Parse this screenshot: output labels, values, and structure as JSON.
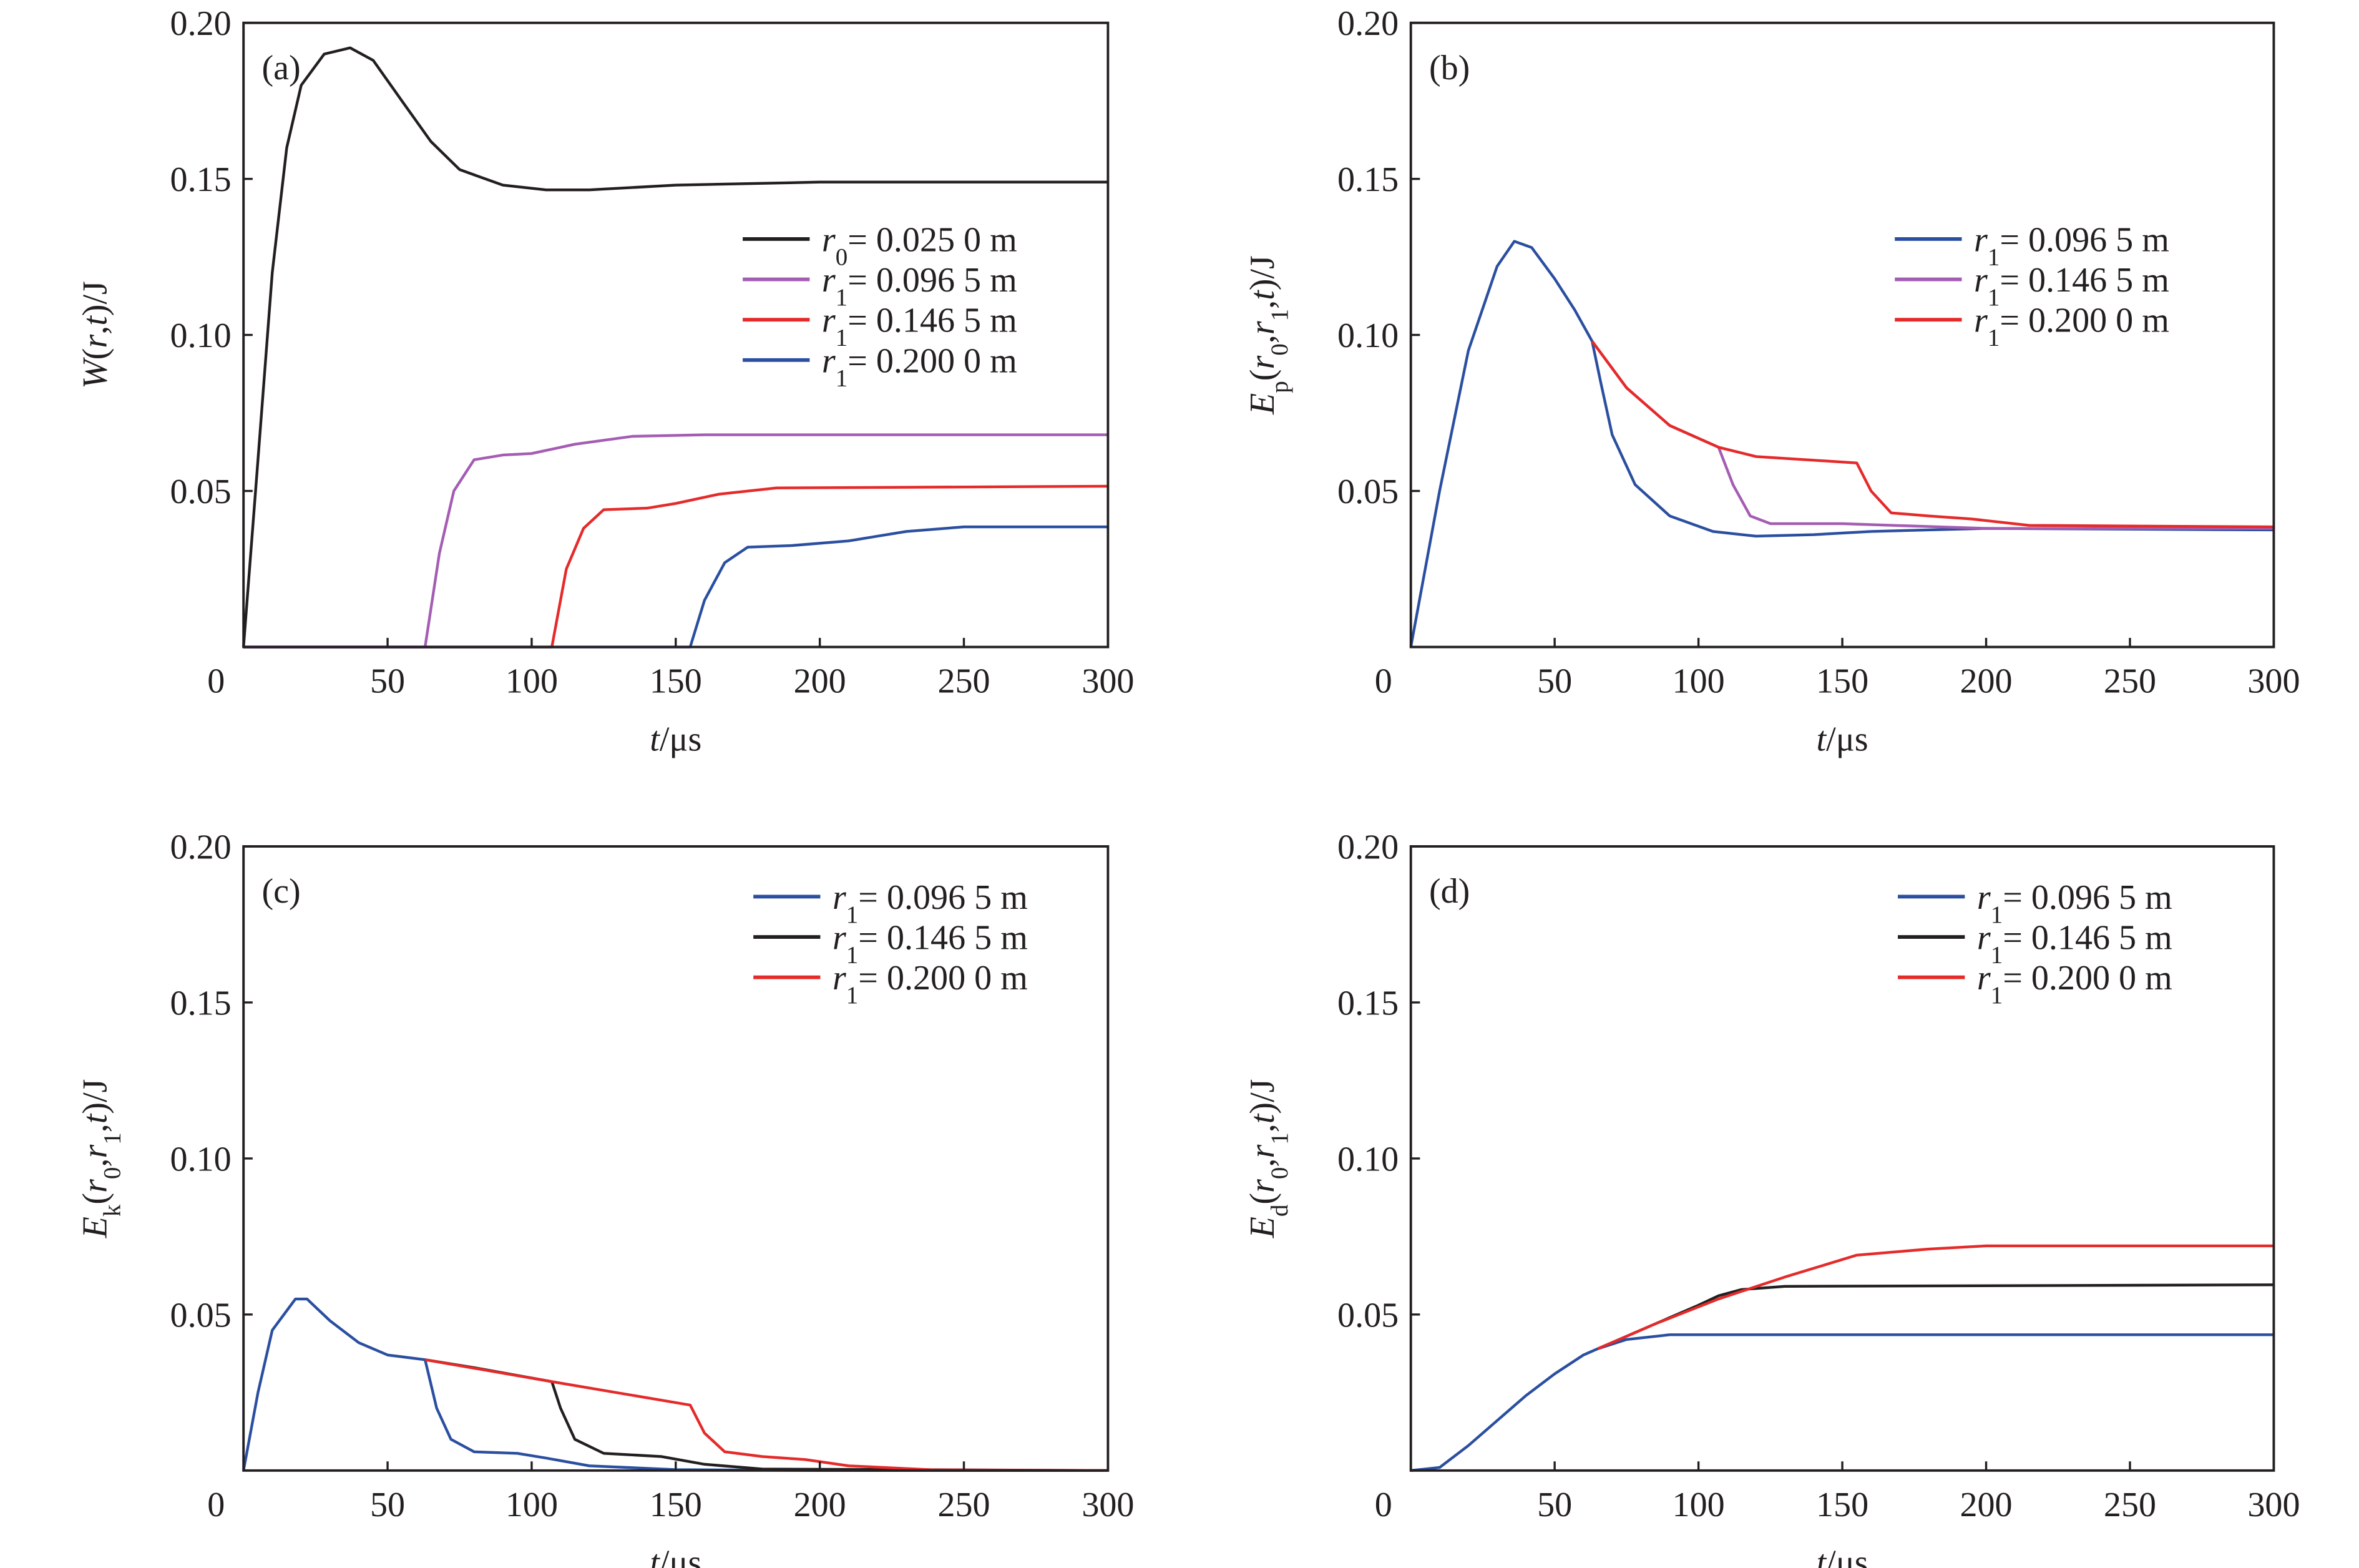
{
  "chart_data": [
    {
      "type": "line",
      "panel_label": "(a)",
      "xlabel": [
        {
          "t": "t",
          "i": true
        },
        {
          "t": "/μs"
        }
      ],
      "ylabel": [
        {
          "t": "W",
          "i": true
        },
        {
          "t": "("
        },
        {
          "t": "r",
          "i": true
        },
        {
          "t": ","
        },
        {
          "t": "t",
          "i": true
        },
        {
          "t": ")/J"
        }
      ],
      "xlim": [
        0,
        300
      ],
      "ylim": [
        0,
        0.2
      ],
      "xticks": [
        "0",
        "50",
        "100",
        "150",
        "200",
        "250",
        "300"
      ],
      "yticks": [
        "0.05",
        "0.10",
        "0.15",
        "0.20"
      ],
      "legend_placement": "center-right",
      "series": [
        {
          "name": [
            {
              "t": "r",
              "i": true
            },
            {
              "t": "0",
              "s": true
            },
            {
              "t": "= 0.025 0 m"
            }
          ],
          "color": "#231f20",
          "points": [
            [
              0,
              0
            ],
            [
              5,
              0.06
            ],
            [
              10,
              0.12
            ],
            [
              15,
              0.16
            ],
            [
              20,
              0.18
            ],
            [
              28,
              0.19
            ],
            [
              37,
              0.192
            ],
            [
              45,
              0.188
            ],
            [
              55,
              0.175
            ],
            [
              65,
              0.162
            ],
            [
              75,
              0.153
            ],
            [
              90,
              0.148
            ],
            [
              105,
              0.1465
            ],
            [
              120,
              0.1465
            ],
            [
              150,
              0.148
            ],
            [
              200,
              0.149
            ],
            [
              300,
              0.149
            ]
          ]
        },
        {
          "name": [
            {
              "t": "r",
              "i": true
            },
            {
              "t": "1",
              "s": true
            },
            {
              "t": "= 0.096 5 m"
            }
          ],
          "color": "#a45db3",
          "points": [
            [
              0,
              0
            ],
            [
              63,
              0
            ],
            [
              68,
              0.03
            ],
            [
              73,
              0.05
            ],
            [
              80,
              0.06
            ],
            [
              90,
              0.0615
            ],
            [
              100,
              0.062
            ],
            [
              115,
              0.065
            ],
            [
              135,
              0.0675
            ],
            [
              160,
              0.068
            ],
            [
              300,
              0.068
            ]
          ]
        },
        {
          "name": [
            {
              "t": "r",
              "i": true
            },
            {
              "t": "1",
              "s": true
            },
            {
              "t": "= 0.146 5 m"
            }
          ],
          "color": "#e52a2a",
          "points": [
            [
              0,
              0
            ],
            [
              107,
              0
            ],
            [
              112,
              0.025
            ],
            [
              118,
              0.038
            ],
            [
              125,
              0.044
            ],
            [
              140,
              0.0445
            ],
            [
              150,
              0.046
            ],
            [
              165,
              0.049
            ],
            [
              185,
              0.051
            ],
            [
              300,
              0.0515
            ]
          ]
        },
        {
          "name": [
            {
              "t": "r",
              "i": true
            },
            {
              "t": "1",
              "s": true
            },
            {
              "t": "= 0.200 0 m"
            }
          ],
          "color": "#2b4fa0",
          "points": [
            [
              0,
              0
            ],
            [
              155,
              0
            ],
            [
              160,
              0.015
            ],
            [
              167,
              0.027
            ],
            [
              175,
              0.032
            ],
            [
              190,
              0.0325
            ],
            [
              210,
              0.034
            ],
            [
              230,
              0.037
            ],
            [
              250,
              0.0385
            ],
            [
              300,
              0.0385
            ]
          ]
        }
      ]
    },
    {
      "type": "line",
      "panel_label": "(b)",
      "xlabel": [
        {
          "t": "t",
          "i": true
        },
        {
          "t": "/μs"
        }
      ],
      "ylabel": [
        {
          "t": "E",
          "i": true
        },
        {
          "t": "p",
          "s": true
        },
        {
          "t": "("
        },
        {
          "t": "r",
          "i": true
        },
        {
          "t": "0",
          "s": true
        },
        {
          "t": ","
        },
        {
          "t": "r",
          "i": true
        },
        {
          "t": "1",
          "s": true
        },
        {
          "t": ","
        },
        {
          "t": "t",
          "i": true
        },
        {
          "t": ")/J"
        }
      ],
      "xlim": [
        0,
        300
      ],
      "ylim": [
        0,
        0.2
      ],
      "xticks": [
        "0",
        "50",
        "100",
        "150",
        "200",
        "250",
        "300"
      ],
      "yticks": [
        "0.05",
        "0.10",
        "0.15",
        "0.20"
      ],
      "legend_placement": "top-right",
      "series": [
        {
          "name": [
            {
              "t": "r",
              "i": true
            },
            {
              "t": "1",
              "s": true
            },
            {
              "t": "= 0.096 5 m"
            }
          ],
          "color": "#2b4fa0",
          "points": [
            [
              0,
              0
            ],
            [
              10,
              0.05
            ],
            [
              20,
              0.095
            ],
            [
              30,
              0.122
            ],
            [
              36,
              0.13
            ],
            [
              42,
              0.128
            ],
            [
              50,
              0.118
            ],
            [
              57,
              0.108
            ],
            [
              63,
              0.098
            ],
            [
              66,
              0.085
            ],
            [
              70,
              0.068
            ],
            [
              78,
              0.052
            ],
            [
              90,
              0.042
            ],
            [
              105,
              0.037
            ],
            [
              120,
              0.0355
            ],
            [
              140,
              0.036
            ],
            [
              160,
              0.037
            ],
            [
              200,
              0.038
            ],
            [
              300,
              0.0375
            ]
          ]
        },
        {
          "name": [
            {
              "t": "r",
              "i": true
            },
            {
              "t": "1",
              "s": true
            },
            {
              "t": "= 0.146 5 m"
            }
          ],
          "color": "#a45db3",
          "points": [
            [
              63,
              0.098
            ],
            [
              75,
              0.083
            ],
            [
              90,
              0.071
            ],
            [
              107,
              0.064
            ],
            [
              112,
              0.052
            ],
            [
              118,
              0.042
            ],
            [
              125,
              0.0395
            ],
            [
              150,
              0.0395
            ],
            [
              200,
              0.038
            ],
            [
              300,
              0.038
            ]
          ]
        },
        {
          "name": [
            {
              "t": "r",
              "i": true
            },
            {
              "t": "1",
              "s": true
            },
            {
              "t": "= 0.200 0 m"
            }
          ],
          "color": "#e52a2a",
          "points": [
            [
              63,
              0.098
            ],
            [
              75,
              0.083
            ],
            [
              90,
              0.071
            ],
            [
              107,
              0.064
            ],
            [
              120,
              0.061
            ],
            [
              155,
              0.059
            ],
            [
              160,
              0.05
            ],
            [
              167,
              0.043
            ],
            [
              180,
              0.042
            ],
            [
              195,
              0.041
            ],
            [
              215,
              0.039
            ],
            [
              300,
              0.0385
            ]
          ]
        }
      ]
    },
    {
      "type": "line",
      "panel_label": "(c)",
      "xlabel": [
        {
          "t": "t",
          "i": true
        },
        {
          "t": "/μs"
        }
      ],
      "ylabel": [
        {
          "t": "E",
          "i": true
        },
        {
          "t": "k",
          "s": true
        },
        {
          "t": "("
        },
        {
          "t": "r",
          "i": true
        },
        {
          "t": "0",
          "s": true
        },
        {
          "t": ","
        },
        {
          "t": "r",
          "i": true
        },
        {
          "t": "1",
          "s": true
        },
        {
          "t": ","
        },
        {
          "t": "t",
          "i": true
        },
        {
          "t": ")/J"
        }
      ],
      "xlim": [
        0,
        300
      ],
      "ylim": [
        0,
        0.2
      ],
      "xticks": [
        "0",
        "50",
        "100",
        "150",
        "200",
        "250",
        "300"
      ],
      "yticks": [
        "0.05",
        "0.10",
        "0.15",
        "0.20"
      ],
      "legend_placement": "top-right",
      "series": [
        {
          "name": [
            {
              "t": "r",
              "i": true
            },
            {
              "t": "1",
              "s": true
            },
            {
              "t": "= 0.096 5 m"
            }
          ],
          "color": "#2b4fa0",
          "points": [
            [
              0,
              0
            ],
            [
              5,
              0.025
            ],
            [
              10,
              0.045
            ],
            [
              18,
              0.055
            ],
            [
              22,
              0.055
            ],
            [
              30,
              0.048
            ],
            [
              40,
              0.041
            ],
            [
              50,
              0.037
            ],
            [
              63,
              0.0355
            ],
            [
              67,
              0.02
            ],
            [
              72,
              0.01
            ],
            [
              80,
              0.006
            ],
            [
              95,
              0.0055
            ],
            [
              105,
              0.004
            ],
            [
              120,
              0.0015
            ],
            [
              150,
              0.0003
            ],
            [
              200,
              0
            ],
            [
              300,
              0
            ]
          ]
        },
        {
          "name": [
            {
              "t": "r",
              "i": true
            },
            {
              "t": "1",
              "s": true
            },
            {
              "t": "= 0.146 5 m"
            }
          ],
          "color": "#231f20",
          "points": [
            [
              63,
              0.0355
            ],
            [
              80,
              0.033
            ],
            [
              107,
              0.0285
            ],
            [
              110,
              0.02
            ],
            [
              115,
              0.01
            ],
            [
              125,
              0.0055
            ],
            [
              145,
              0.0045
            ],
            [
              160,
              0.002
            ],
            [
              180,
              0.0005
            ],
            [
              300,
              0
            ]
          ]
        },
        {
          "name": [
            {
              "t": "r",
              "i": true
            },
            {
              "t": "1",
              "s": true
            },
            {
              "t": "= 0.200 0 m"
            }
          ],
          "color": "#e52a2a",
          "points": [
            [
              63,
              0.0355
            ],
            [
              107,
              0.0285
            ],
            [
              155,
              0.021
            ],
            [
              160,
              0.012
            ],
            [
              167,
              0.006
            ],
            [
              180,
              0.0045
            ],
            [
              195,
              0.0035
            ],
            [
              210,
              0.0015
            ],
            [
              240,
              0.0002
            ],
            [
              300,
              0
            ]
          ]
        }
      ]
    },
    {
      "type": "line",
      "panel_label": "(d)",
      "xlabel": [
        {
          "t": "t",
          "i": true
        },
        {
          "t": "/μs"
        }
      ],
      "ylabel": [
        {
          "t": "E",
          "i": true
        },
        {
          "t": "d",
          "s": true
        },
        {
          "t": "("
        },
        {
          "t": "r",
          "i": true
        },
        {
          "t": "0",
          "s": true
        },
        {
          "t": ","
        },
        {
          "t": "r",
          "i": true
        },
        {
          "t": "1",
          "s": true
        },
        {
          "t": ","
        },
        {
          "t": "t",
          "i": true
        },
        {
          "t": ")/J"
        }
      ],
      "xlim": [
        0,
        300
      ],
      "ylim": [
        0,
        0.2
      ],
      "xticks": [
        "0",
        "50",
        "100",
        "150",
        "200",
        "250",
        "300"
      ],
      "yticks": [
        "0.05",
        "0.10",
        "0.15",
        "0.20"
      ],
      "legend_placement": "top-right",
      "series": [
        {
          "name": [
            {
              "t": "r",
              "i": true
            },
            {
              "t": "1",
              "s": true
            },
            {
              "t": "= 0.096 5 m"
            }
          ],
          "color": "#2b4fa0",
          "points": [
            [
              0,
              0
            ],
            [
              10,
              0.001
            ],
            [
              20,
              0.008
            ],
            [
              30,
              0.016
            ],
            [
              40,
              0.024
            ],
            [
              50,
              0.031
            ],
            [
              60,
              0.037
            ],
            [
              65,
              0.039
            ],
            [
              75,
              0.042
            ],
            [
              90,
              0.0435
            ],
            [
              100,
              0.0435
            ],
            [
              300,
              0.0435
            ]
          ]
        },
        {
          "name": [
            {
              "t": "r",
              "i": true
            },
            {
              "t": "1",
              "s": true
            },
            {
              "t": "= 0.146 5 m"
            }
          ],
          "color": "#231f20",
          "points": [
            [
              65,
              0.039
            ],
            [
              85,
              0.047
            ],
            [
              100,
              0.053
            ],
            [
              107,
              0.056
            ],
            [
              115,
              0.058
            ],
            [
              130,
              0.059
            ],
            [
              300,
              0.0595
            ]
          ]
        },
        {
          "name": [
            {
              "t": "r",
              "i": true
            },
            {
              "t": "1",
              "s": true
            },
            {
              "t": "= 0.200 0 m"
            }
          ],
          "color": "#e52a2a",
          "points": [
            [
              65,
              0.039
            ],
            [
              85,
              0.047
            ],
            [
              107,
              0.055
            ],
            [
              130,
              0.062
            ],
            [
              155,
              0.069
            ],
            [
              180,
              0.071
            ],
            [
              200,
              0.072
            ],
            [
              300,
              0.072
            ]
          ]
        }
      ]
    }
  ]
}
